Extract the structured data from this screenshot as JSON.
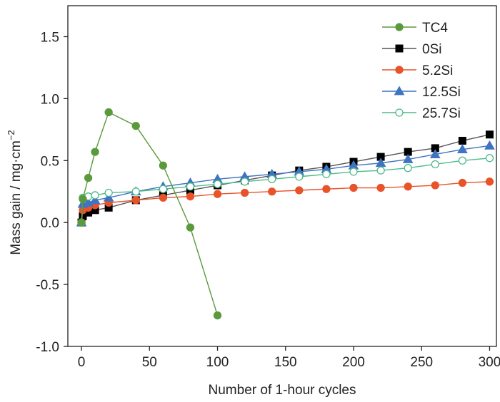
{
  "chart_data": {
    "type": "line",
    "xlabel": "Number of 1-hour cycles",
    "ylabel_main": "Mass gain / mg·cm",
    "ylabel_sup": "−2",
    "xlim": [
      -10,
      305
    ],
    "ylim": [
      -1.0,
      1.75
    ],
    "xticks": [
      0,
      50,
      100,
      150,
      200,
      250,
      300
    ],
    "yticks": [
      -1.0,
      -0.5,
      0.0,
      0.5,
      1.0,
      1.5
    ],
    "ytick_labels": [
      "-1.0",
      "-0.5",
      "0.0",
      "0.5",
      "1.0",
      "1.5"
    ],
    "grid": false,
    "legend_position": "top-right",
    "series": [
      {
        "name": "TC4",
        "color": "#5a9a3c",
        "marker": "circle",
        "fill": "filled",
        "line": "#5a9a3c",
        "points": [
          [
            0,
            0
          ],
          [
            1,
            0.19
          ],
          [
            5,
            0.36
          ],
          [
            10,
            0.57
          ],
          [
            20,
            0.89
          ],
          [
            40,
            0.78
          ],
          [
            60,
            0.46
          ],
          [
            80,
            -0.04
          ],
          [
            100,
            -0.75
          ]
        ]
      },
      {
        "name": "0Si",
        "color": "#000000",
        "marker": "square",
        "fill": "filled",
        "line": "#555555",
        "points": [
          [
            0,
            0
          ],
          [
            1,
            0.05
          ],
          [
            5,
            0.08
          ],
          [
            10,
            0.1
          ],
          [
            20,
            0.12
          ],
          [
            40,
            0.18
          ],
          [
            60,
            0.22
          ],
          [
            80,
            0.26
          ],
          [
            100,
            0.3
          ],
          [
            120,
            0.34
          ],
          [
            140,
            0.38
          ],
          [
            160,
            0.42
          ],
          [
            180,
            0.45
          ],
          [
            200,
            0.49
          ],
          [
            220,
            0.53
          ],
          [
            240,
            0.57
          ],
          [
            260,
            0.6
          ],
          [
            280,
            0.66
          ],
          [
            300,
            0.71
          ]
        ]
      },
      {
        "name": "5.2Si",
        "color": "#e8532a",
        "marker": "circle",
        "fill": "filled",
        "line": "#e8532a",
        "points": [
          [
            0,
            0
          ],
          [
            1,
            0.1
          ],
          [
            5,
            0.12
          ],
          [
            10,
            0.14
          ],
          [
            20,
            0.16
          ],
          [
            40,
            0.18
          ],
          [
            60,
            0.2
          ],
          [
            80,
            0.21
          ],
          [
            100,
            0.23
          ],
          [
            120,
            0.24
          ],
          [
            140,
            0.25
          ],
          [
            160,
            0.26
          ],
          [
            180,
            0.27
          ],
          [
            200,
            0.28
          ],
          [
            220,
            0.28
          ],
          [
            240,
            0.29
          ],
          [
            260,
            0.3
          ],
          [
            280,
            0.32
          ],
          [
            300,
            0.33
          ]
        ]
      },
      {
        "name": "12.5Si",
        "color": "#3f74c2",
        "marker": "triangle",
        "fill": "filled",
        "line": "#3f74c2",
        "points": [
          [
            0,
            0
          ],
          [
            1,
            0.15
          ],
          [
            5,
            0.16
          ],
          [
            10,
            0.18
          ],
          [
            20,
            0.2
          ],
          [
            40,
            0.25
          ],
          [
            60,
            0.29
          ],
          [
            80,
            0.32
          ],
          [
            100,
            0.35
          ],
          [
            120,
            0.37
          ],
          [
            140,
            0.39
          ],
          [
            160,
            0.41
          ],
          [
            180,
            0.43
          ],
          [
            200,
            0.46
          ],
          [
            220,
            0.48
          ],
          [
            240,
            0.51
          ],
          [
            260,
            0.55
          ],
          [
            280,
            0.59
          ],
          [
            300,
            0.62
          ]
        ]
      },
      {
        "name": "25.7Si",
        "color": "#4fb98a",
        "marker": "circle",
        "fill": "open",
        "line": "#4fb98a",
        "points": [
          [
            0,
            0
          ],
          [
            1,
            0.2
          ],
          [
            5,
            0.21
          ],
          [
            10,
            0.22
          ],
          [
            20,
            0.24
          ],
          [
            40,
            0.25
          ],
          [
            60,
            0.27
          ],
          [
            80,
            0.29
          ],
          [
            100,
            0.31
          ],
          [
            120,
            0.33
          ],
          [
            140,
            0.35
          ],
          [
            160,
            0.37
          ],
          [
            180,
            0.39
          ],
          [
            200,
            0.41
          ],
          [
            220,
            0.42
          ],
          [
            240,
            0.44
          ],
          [
            260,
            0.47
          ],
          [
            280,
            0.5
          ],
          [
            300,
            0.52
          ]
        ]
      }
    ]
  }
}
